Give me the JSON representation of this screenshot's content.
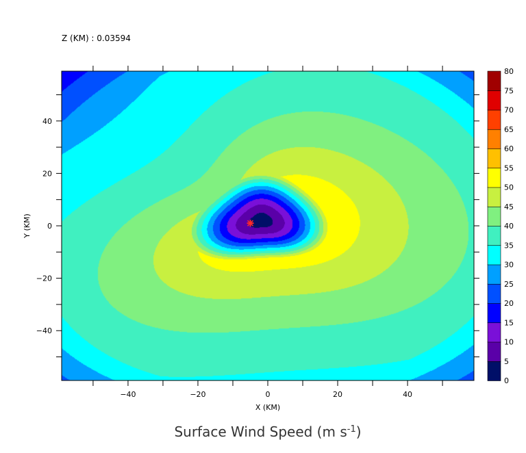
{
  "header": {
    "level_label": "Z (KM) : 0.03594"
  },
  "chart_data": {
    "type": "contour",
    "title": "Surface Wind Speed (m s",
    "title_exponent": "-1",
    "title_suffix": ")",
    "xlabel": "X (KM)",
    "ylabel": "Y (KM)",
    "xlim": [
      -59,
      59
    ],
    "ylim": [
      -59,
      59
    ],
    "x_ticks": [
      -40,
      -20,
      0,
      20,
      40
    ],
    "y_ticks": [
      -40,
      -20,
      0,
      20,
      40
    ],
    "x_tick_labels": [
      "−40",
      "−20",
      "0",
      "20",
      "40"
    ],
    "y_tick_labels": [
      "−40",
      "−20",
      "0",
      "20",
      "40"
    ],
    "colorbar": {
      "levels": [
        0,
        5,
        10,
        15,
        20,
        25,
        30,
        35,
        40,
        45,
        50,
        55,
        60,
        65,
        70,
        75,
        80
      ],
      "labels": [
        "0",
        "5",
        "10",
        "15",
        "20",
        "25",
        "30",
        "35",
        "40",
        "45",
        "50",
        "55",
        "60",
        "65",
        "70",
        "75",
        "80"
      ],
      "colors": [
        "#000f68",
        "#5a00a8",
        "#7a10d8",
        "#0000ff",
        "#0050ff",
        "#00a0ff",
        "#00ffff",
        "#40f0c0",
        "#80f080",
        "#c8f040",
        "#ffff00",
        "#ffc000",
        "#ff8000",
        "#ff4000",
        "#e00000",
        "#a00000"
      ]
    },
    "field": {
      "center": [
        -2,
        2
      ],
      "minimum": 3,
      "radius_of_max_wind": 15,
      "max_speed": 50,
      "outer_speed": 20,
      "storm_center_marker": [
        -5,
        1
      ]
    }
  }
}
